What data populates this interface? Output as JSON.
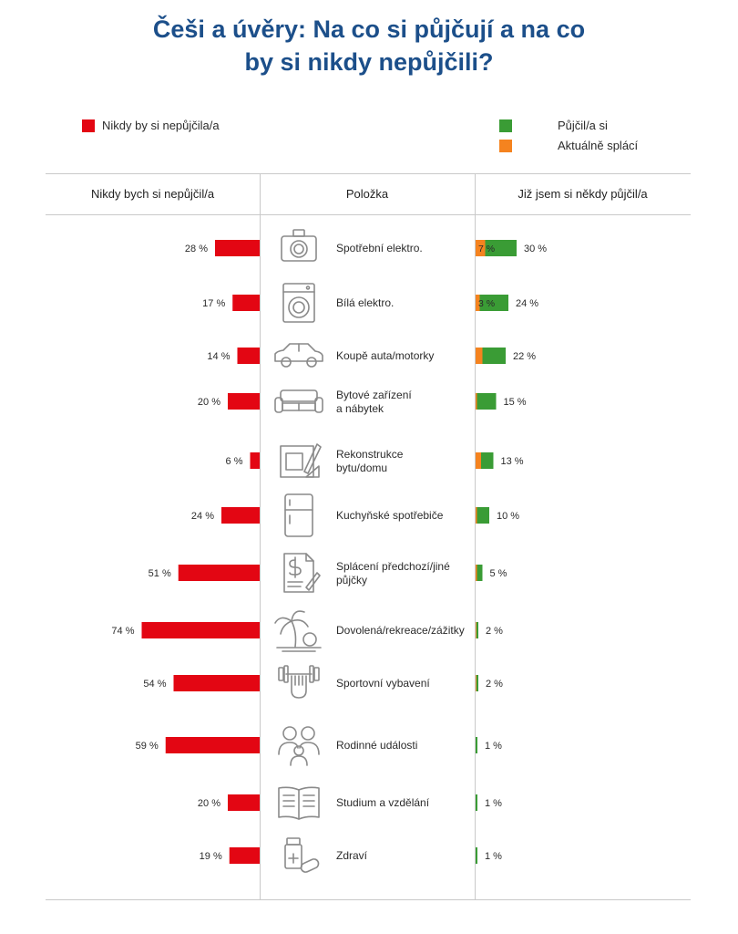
{
  "header": {
    "title_line1": "Češi a úvěry: Na co si půjčují a na co",
    "title_line2": "by si nikdy nepůjčili?"
  },
  "legend": {
    "never": "Nikdy by si nepůjčila/a",
    "borrowed": "Půjčil/a si",
    "repaying": "Aktuálně splácí"
  },
  "columns": {
    "left": "Nikdy bych si nepůjčil/a",
    "middle": "Položka",
    "right": "Již jsem si někdy půjčil/a"
  },
  "colors": {
    "never": "#e30613",
    "borrowed": "#3a9c35",
    "repaying": "#f5831f",
    "title": "#1c4f8a"
  },
  "chart_data": {
    "type": "bar",
    "categories": [
      [
        "Spotřební elektro."
      ],
      [
        "Bílá elektro."
      ],
      [
        "Koupě auta/motorky"
      ],
      [
        "Bytové zařízení",
        "a nábytek"
      ],
      [
        "Rekonstrukce",
        "bytu/domu"
      ],
      [
        "Kuchyňské spotřebiče"
      ],
      [
        "Splácení předchozí/jiné",
        "půjčky"
      ],
      [
        "Dovolená/rekreace/zážitky"
      ],
      [
        "Sportovní vybavení"
      ],
      [
        "Rodinné události"
      ],
      [
        "Studium a vzdělání"
      ],
      [
        "Zdraví"
      ]
    ],
    "icons": [
      "camera-icon",
      "washing-machine-icon",
      "car-icon",
      "sofa-icon",
      "blueprint-icon",
      "fridge-icon",
      "invoice-icon",
      "palm-beach-icon",
      "dumbbell-icon",
      "family-icon",
      "book-icon",
      "medicine-icon"
    ],
    "never_borrow": [
      28,
      17,
      14,
      20,
      6,
      24,
      51,
      74,
      54,
      59,
      20,
      19
    ],
    "borrowed_total": [
      30,
      24,
      22,
      15,
      13,
      10,
      5,
      2,
      2,
      1,
      1,
      1
    ],
    "currently_repaying": [
      7,
      3,
      5,
      1,
      4,
      1,
      1,
      0.5,
      0.5,
      0,
      0,
      0
    ],
    "repaying_labels": [
      "7 %",
      "3 %",
      "",
      "",
      "",
      "",
      "",
      "",
      "",
      "",
      "",
      ""
    ],
    "never_labels": [
      "28 %",
      "17 %",
      "14 %",
      "20 %",
      "6 %",
      "24 %",
      "51 %",
      "74 %",
      "54 %",
      "59 %",
      "20 %",
      "19 %"
    ],
    "borrowed_labels": [
      "30 %",
      "24 %",
      "22 %",
      "15 %",
      "13 %",
      "10 %",
      "5 %",
      "2 %",
      "2 %",
      "1 %",
      "1 %",
      "1 %"
    ]
  }
}
